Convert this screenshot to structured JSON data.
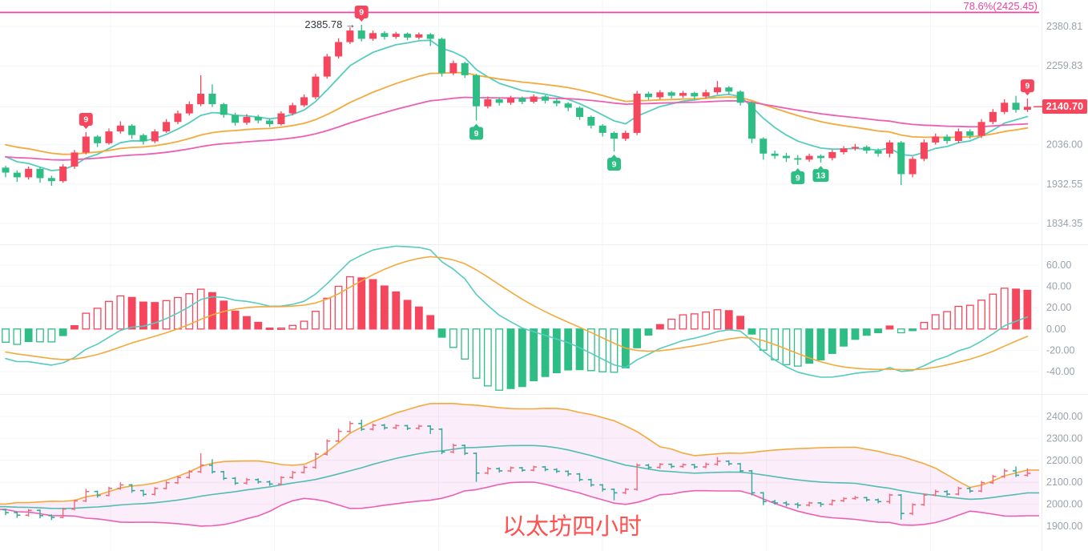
{
  "colors": {
    "up": "#f6465d",
    "down": "#2ebd85",
    "ma_fast": "#56ccc0",
    "ma_mid": "#f3aa3c",
    "ma_slow": "#ed5fb4",
    "fib": "#e944a2",
    "axis_text": "#9aa2ad",
    "grid": "#f3f4f6",
    "panel_border": "#eceef1",
    "tag_bg": "#f6465d",
    "tag_text": "#ffffff",
    "boll_upper": "#f3aa3c",
    "boll_mid": "#52bdb2",
    "boll_lower": "#ed5fb4",
    "boll_fill": "rgba(228,126,216,0.14)",
    "bar_up": "#ef6b7a",
    "bar_down": "#35a79b",
    "title_text": "#fc5252",
    "annotation_text": "#333a44",
    "badge_up": "#f6465d",
    "badge_down": "#2ebd85"
  },
  "chart_data": {
    "type": "candlestick",
    "panels": [
      {
        "id": "price",
        "scale": "log",
        "tick_labels": [
          "2380.81",
          "2259.83",
          "2036.00",
          "1932.55",
          "1834.35"
        ],
        "tick_values": [
          2380.81,
          2259.83,
          2036.0,
          1932.55,
          1834.35
        ],
        "tag_value": 2140.7,
        "last_price_label": "2140.70",
        "fib": {
          "label": "78.6%(2425.45)",
          "value": 2425.45
        },
        "peak": {
          "label": "2385.78 →",
          "value": 2385.78,
          "index": 31
        },
        "ma_overlays": [
          {
            "type": "ema",
            "period": 7,
            "color_key": "ma_fast",
            "seed": 2018
          },
          {
            "type": "ema",
            "period": 25,
            "color_key": "ma_mid",
            "seed": 2042
          },
          {
            "type": "ema",
            "period": 50,
            "color_key": "ma_slow",
            "seed": 2005
          }
        ]
      },
      {
        "id": "macd",
        "scale": "linear",
        "tick_labels": [
          "60.00",
          "40.00",
          "20.00",
          "0.00",
          "-20.00",
          "-40.00"
        ],
        "tick_values": [
          60,
          40,
          20,
          0,
          -20,
          -40
        ],
        "params": {
          "fast": 12,
          "slow": 26,
          "signal": 9,
          "hist_scale": 2,
          "seed_fast": 2020,
          "seed_slow": 2045,
          "seed_signal": -20
        }
      },
      {
        "id": "boll",
        "scale": "linear",
        "tick_labels": [
          "2400.00",
          "2300.00",
          "2200.00",
          "2100.00",
          "2000.00",
          "1900.00"
        ],
        "tick_values": [
          2400,
          2300,
          2200,
          2100,
          2000,
          1900
        ],
        "params": {
          "window": 20,
          "mult": 2,
          "pad": 1990
        },
        "title": "以太坊四小时"
      }
    ],
    "badges": [
      {
        "index": 7,
        "text": "9",
        "side": "above",
        "color_key": "badge_up"
      },
      {
        "index": 31,
        "text": "9",
        "side": "above",
        "color_key": "badge_up"
      },
      {
        "index": 41,
        "text": "9",
        "side": "below",
        "color_key": "badge_down"
      },
      {
        "index": 53,
        "text": "9",
        "side": "below",
        "color_key": "badge_down"
      },
      {
        "index": 69,
        "text": "9",
        "side": "below",
        "color_key": "badge_down"
      },
      {
        "index": 71,
        "text": "13",
        "side": "below",
        "color_key": "badge_down"
      },
      {
        "index": 89,
        "text": "9",
        "side": "above",
        "color_key": "badge_up"
      }
    ],
    "candles": [
      [
        1975,
        1980,
        1950,
        1962
      ],
      [
        1962,
        1968,
        1938,
        1950
      ],
      [
        1950,
        1978,
        1944,
        1972
      ],
      [
        1972,
        1976,
        1936,
        1948
      ],
      [
        1948,
        1954,
        1928,
        1940
      ],
      [
        1940,
        1984,
        1936,
        1978
      ],
      [
        1978,
        2022,
        1972,
        2015
      ],
      [
        2015,
        2070,
        2010,
        2058
      ],
      [
        2058,
        2062,
        2030,
        2040
      ],
      [
        2040,
        2080,
        2036,
        2072
      ],
      [
        2072,
        2100,
        2066,
        2088
      ],
      [
        2088,
        2092,
        2052,
        2062
      ],
      [
        2062,
        2066,
        2036,
        2045
      ],
      [
        2045,
        2078,
        2040,
        2072
      ],
      [
        2072,
        2106,
        2068,
        2098
      ],
      [
        2098,
        2130,
        2092,
        2122
      ],
      [
        2122,
        2156,
        2116,
        2148
      ],
      [
        2148,
        2232,
        2142,
        2178
      ],
      [
        2178,
        2205,
        2140,
        2148
      ],
      [
        2148,
        2152,
        2110,
        2118
      ],
      [
        2118,
        2124,
        2088,
        2096
      ],
      [
        2096,
        2120,
        2090,
        2112
      ],
      [
        2112,
        2118,
        2094,
        2102
      ],
      [
        2102,
        2108,
        2084,
        2092
      ],
      [
        2092,
        2128,
        2088,
        2122
      ],
      [
        2122,
        2152,
        2116,
        2145
      ],
      [
        2145,
        2176,
        2140,
        2168
      ],
      [
        2168,
        2236,
        2162,
        2228
      ],
      [
        2228,
        2296,
        2222,
        2288
      ],
      [
        2288,
        2344,
        2282,
        2332
      ],
      [
        2332,
        2378,
        2326,
        2368
      ],
      [
        2368,
        2385.78,
        2334,
        2342
      ],
      [
        2342,
        2368,
        2336,
        2360
      ],
      [
        2360,
        2366,
        2340,
        2348
      ],
      [
        2348,
        2364,
        2342,
        2358
      ],
      [
        2358,
        2362,
        2338,
        2346
      ],
      [
        2346,
        2362,
        2340,
        2356
      ],
      [
        2356,
        2360,
        2320,
        2342
      ],
      [
        2342,
        2346,
        2228,
        2238
      ],
      [
        2238,
        2276,
        2232,
        2268
      ],
      [
        2268,
        2272,
        2224,
        2232
      ],
      [
        2232,
        2236,
        2102,
        2142
      ],
      [
        2142,
        2170,
        2136,
        2162
      ],
      [
        2162,
        2168,
        2144,
        2152
      ],
      [
        2152,
        2172,
        2146,
        2166
      ],
      [
        2166,
        2170,
        2148,
        2155
      ],
      [
        2155,
        2176,
        2150,
        2170
      ],
      [
        2170,
        2174,
        2150,
        2158
      ],
      [
        2158,
        2164,
        2142,
        2150
      ],
      [
        2150,
        2154,
        2128,
        2138
      ],
      [
        2138,
        2142,
        2104,
        2112
      ],
      [
        2112,
        2116,
        2080,
        2088
      ],
      [
        2088,
        2092,
        2058,
        2068
      ],
      [
        2068,
        2072,
        2018,
        2052
      ],
      [
        2052,
        2074,
        2046,
        2068
      ],
      [
        2068,
        2186,
        2062,
        2178
      ],
      [
        2178,
        2184,
        2160,
        2168
      ],
      [
        2168,
        2188,
        2162,
        2182
      ],
      [
        2182,
        2186,
        2164,
        2172
      ],
      [
        2172,
        2186,
        2166,
        2180
      ],
      [
        2180,
        2184,
        2162,
        2170
      ],
      [
        2170,
        2190,
        2164,
        2182
      ],
      [
        2182,
        2215,
        2176,
        2196
      ],
      [
        2196,
        2200,
        2176,
        2184
      ],
      [
        2184,
        2188,
        2144,
        2152
      ],
      [
        2152,
        2156,
        2040,
        2052
      ],
      [
        2052,
        2056,
        1996,
        2012
      ],
      [
        2012,
        2020,
        1998,
        2006
      ],
      [
        2006,
        2014,
        1990,
        2000
      ],
      [
        2000,
        2008,
        1982,
        1996
      ],
      [
        1996,
        2012,
        1990,
        2006
      ],
      [
        2006,
        2010,
        1988,
        2000
      ],
      [
        2000,
        2022,
        1994,
        2016
      ],
      [
        2016,
        2032,
        2010,
        2026
      ],
      [
        2026,
        2038,
        2020,
        2030
      ],
      [
        2030,
        2034,
        2012,
        2020
      ],
      [
        2020,
        2026,
        2004,
        2012
      ],
      [
        2012,
        2048,
        2002,
        2042
      ],
      [
        2042,
        2046,
        1930,
        1958
      ],
      [
        1958,
        2004,
        1950,
        1998
      ],
      [
        1998,
        2050,
        1992,
        2042
      ],
      [
        2042,
        2066,
        2036,
        2058
      ],
      [
        2058,
        2064,
        2038,
        2046
      ],
      [
        2046,
        2080,
        2040,
        2072
      ],
      [
        2072,
        2078,
        2052,
        2060
      ],
      [
        2060,
        2106,
        2054,
        2098
      ],
      [
        2098,
        2134,
        2092,
        2126
      ],
      [
        2126,
        2162,
        2120,
        2152
      ],
      [
        2152,
        2172,
        2124,
        2132
      ],
      [
        2132,
        2164,
        2126,
        2140.7
      ]
    ]
  }
}
